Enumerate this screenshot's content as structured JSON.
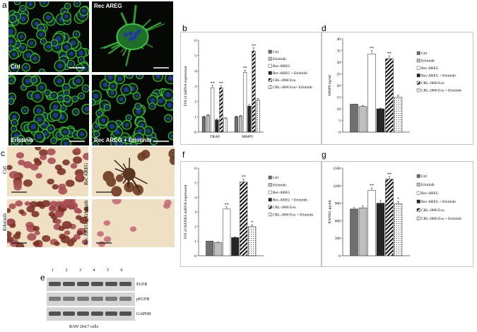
{
  "panel_letters": {
    "a": "a",
    "b": "b",
    "c": "c",
    "d": "d",
    "e": "e",
    "f": "f",
    "g": "g"
  },
  "panel_a": {
    "tl": "Ctrl",
    "tr": "Rec AREG",
    "bl": "Erlotinib",
    "br": "Rec AREG + Erlotinib"
  },
  "panel_c": {
    "left_top": "Ctrl",
    "left_bottom": "Erlotinib",
    "right_top": "Rec AREG",
    "right_bottom": "Rec AREG + Erlotinib"
  },
  "panel_e": {
    "lanes": [
      "1",
      "2",
      "3",
      "4",
      "5",
      "6"
    ],
    "bands": [
      "EGFR",
      "pEGFR",
      "GAPDH"
    ],
    "caption": "RAW 264.7 cells"
  },
  "colors": {
    "ctrl": "#6f6f6f",
    "erlotinib": "#bfbfbf",
    "rec_areg": "#ffffff",
    "rec_areg_erl": "#262626",
    "exo": "#ffffff",
    "exo_erl": "#ffffff",
    "fluor_green": "#3cc23c",
    "nucleus_blue": "#2436a8"
  },
  "chart_data": [
    {
      "id": "b",
      "type": "bar",
      "title": "",
      "xlabel": "",
      "ylabel": "FOI of mRNA expression",
      "ylim": [
        0,
        6
      ],
      "yticks": [
        "0",
        "1",
        "2",
        "3",
        "4",
        "5",
        "6"
      ],
      "categories": [
        "TRAP",
        "MMP9"
      ],
      "series": [
        {
          "name": "Ctrl",
          "values": [
            1,
            1
          ],
          "err": [
            0.05,
            0.05
          ],
          "sig": [
            "",
            ""
          ]
        },
        {
          "name": "Erlotinib",
          "values": [
            1.1,
            1.05
          ],
          "err": [
            0.05,
            0.05
          ],
          "sig": [
            "",
            ""
          ]
        },
        {
          "name": "Rec-AREG",
          "values": [
            2.9,
            3.9
          ],
          "err": [
            0.15,
            0.15
          ],
          "sig": [
            "**",
            "**"
          ]
        },
        {
          "name": "Rec-AREG + Erlotinib",
          "values": [
            0.8,
            1.7
          ],
          "err": [
            0.05,
            0.1
          ],
          "sig": [
            "",
            ""
          ]
        },
        {
          "name": "CRL-2868 Exo",
          "values": [
            2.9,
            5.3
          ],
          "err": [
            0.15,
            0.2
          ],
          "sig": [
            "**",
            "**"
          ]
        },
        {
          "name": "CRL-2868 Exo+ Erlotinib",
          "values": [
            0.9,
            2.1
          ],
          "err": [
            0.05,
            0.1
          ],
          "sig": [
            "",
            ""
          ]
        }
      ],
      "legend_placement": "right"
    },
    {
      "id": "d",
      "type": "bar",
      "title": "",
      "xlabel": "",
      "ylabel": "MMP9 ng/ml",
      "ylim": [
        0,
        40
      ],
      "yticks": [
        "0",
        "5",
        "10",
        "15",
        "20",
        "25",
        "30",
        "35",
        "40"
      ],
      "categories": [
        ""
      ],
      "series": [
        {
          "name": "Ctrl",
          "values": [
            12
          ],
          "err": [
            0
          ],
          "sig": [
            ""
          ]
        },
        {
          "name": "Erlotinib",
          "values": [
            11
          ],
          "err": [
            0.4
          ],
          "sig": [
            ""
          ]
        },
        {
          "name": "Rec-AREG",
          "values": [
            33.5
          ],
          "err": [
            1.5
          ],
          "sig": [
            "**"
          ]
        },
        {
          "name": "Rec-AREG + Erlotinib",
          "values": [
            10
          ],
          "err": [
            0.3
          ],
          "sig": [
            ""
          ]
        },
        {
          "name": "CRL-2868 Exo",
          "values": [
            31.5
          ],
          "err": [
            1.2
          ],
          "sig": [
            "**"
          ]
        },
        {
          "name": "CRL-2868 Exo + Erlotinib",
          "values": [
            15
          ],
          "err": [
            0.8
          ],
          "sig": [
            ""
          ]
        }
      ],
      "legend_placement": "right"
    },
    {
      "id": "f",
      "type": "bar",
      "title": "",
      "xlabel": "",
      "ylabel": "FOI of RANKL mRNA expression",
      "ylim": [
        0,
        6
      ],
      "yticks": [
        "0",
        "1",
        "2",
        "3",
        "4",
        "5",
        "6"
      ],
      "categories": [
        ""
      ],
      "series": [
        {
          "name": "Ctrl",
          "values": [
            1
          ],
          "err": [
            0
          ],
          "sig": [
            ""
          ]
        },
        {
          "name": "Erlotinib",
          "values": [
            0.9
          ],
          "err": [
            0.03
          ],
          "sig": [
            ""
          ]
        },
        {
          "name": "Rec-AREG",
          "values": [
            3.2
          ],
          "err": [
            0.15
          ],
          "sig": [
            "**"
          ]
        },
        {
          "name": "Rec-AREG  + Erlotinib",
          "values": [
            1.25
          ],
          "err": [
            0.05
          ],
          "sig": [
            ""
          ]
        },
        {
          "name": "CRL-2868 Exo",
          "values": [
            5.05
          ],
          "err": [
            0.2
          ],
          "sig": [
            "**"
          ]
        },
        {
          "name": "CRL-2868 Exo + Erlotinib",
          "values": [
            2
          ],
          "err": [
            0.12
          ],
          "sig": [
            "*"
          ]
        }
      ],
      "legend_placement": "right"
    },
    {
      "id": "g",
      "type": "bar",
      "title": "",
      "xlabel": "",
      "ylabel": "RANKL pg/ml",
      "ylim": [
        0,
        1500
      ],
      "yticks": [
        "0",
        "300",
        "600",
        "900",
        "1200",
        "1500"
      ],
      "categories": [
        ""
      ],
      "series": [
        {
          "name": "Ctrl",
          "values": [
            800
          ],
          "err": [
            25
          ],
          "sig": [
            ""
          ]
        },
        {
          "name": "Erlotinib",
          "values": [
            820
          ],
          "err": [
            30
          ],
          "sig": [
            ""
          ]
        },
        {
          "name": "Rec-AREG",
          "values": [
            1120
          ],
          "err": [
            40
          ],
          "sig": [
            "**"
          ]
        },
        {
          "name": "Rec-AREG + Erlotinib",
          "values": [
            900
          ],
          "err": [
            45
          ],
          "sig": [
            ""
          ]
        },
        {
          "name": "CRL-2868 Exo",
          "values": [
            1310
          ],
          "err": [
            45
          ],
          "sig": [
            "**"
          ]
        },
        {
          "name": "CRL-2868 Exo + Erlotinib",
          "values": [
            890
          ],
          "err": [
            40
          ],
          "sig": [
            "*"
          ]
        }
      ],
      "legend_placement": "right"
    }
  ]
}
